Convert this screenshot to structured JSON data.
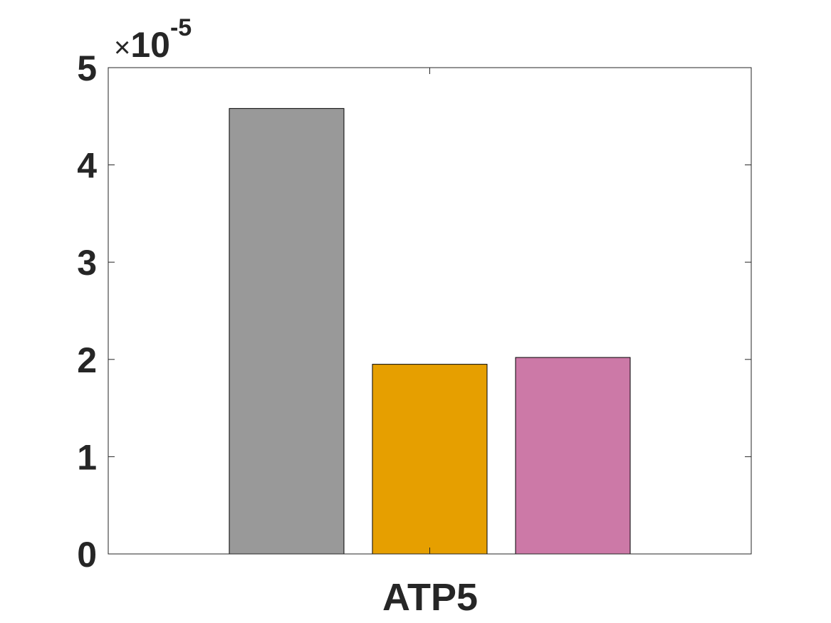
{
  "chart_data": {
    "type": "bar",
    "categories": [
      "ATP5"
    ],
    "series": [
      {
        "values": [
          4.58e-05
        ],
        "color": "#999999"
      },
      {
        "values": [
          1.95e-05
        ],
        "color": "#E69F00"
      },
      {
        "values": [
          2.02e-05
        ],
        "color": "#CC79A7"
      }
    ],
    "ylim": [
      0,
      5e-05
    ],
    "y_ticks": [
      0,
      1,
      2,
      3,
      4,
      5
    ],
    "y_tick_labels": [
      "0",
      "1",
      "2",
      "3",
      "4",
      "5"
    ],
    "y_multiplier": {
      "times": "×",
      "base": "10",
      "exponent": "-5"
    },
    "title": "",
    "xlabel": "",
    "ylabel": "",
    "grid": false
  }
}
